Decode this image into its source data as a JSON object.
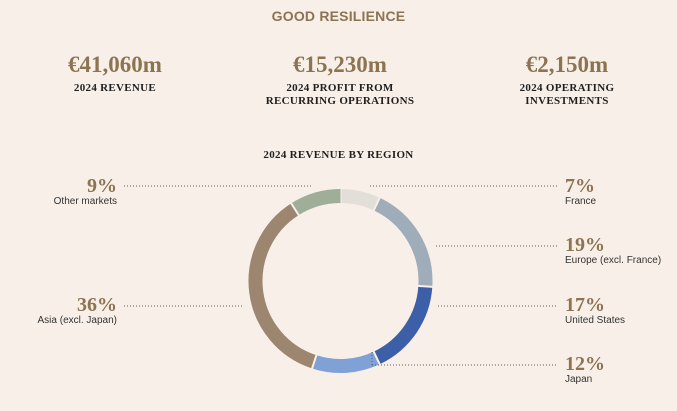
{
  "header": {
    "title": "GOOD RESILIENCE"
  },
  "kpis": [
    {
      "value": "€41,060m",
      "label": "2024 REVENUE"
    },
    {
      "value": "€15,230m",
      "label_line1": "2024 PROFIT FROM",
      "label_line2": "RECURRING OPERATIONS"
    },
    {
      "value": "€2,150m",
      "label_line1": "2024 OPERATING",
      "label_line2": "INVESTMENTS"
    }
  ],
  "chart_data": {
    "type": "pie",
    "title": "2024 REVENUE BY REGION",
    "unit": "%",
    "slices": [
      {
        "label": "France",
        "value": 7,
        "display": "7%",
        "color": "#e2ded8"
      },
      {
        "label": "Europe (excl. France)",
        "value": 19,
        "display": "19%",
        "color": "#9eadb9"
      },
      {
        "label": "United States",
        "value": 17,
        "display": "17%",
        "color": "#3d5fa8"
      },
      {
        "label": "Japan",
        "value": 12,
        "display": "12%",
        "color": "#7fa1d6"
      },
      {
        "label": "Asia (excl. Japan)",
        "value": 36,
        "display": "36%",
        "color": "#9c8670"
      },
      {
        "label": "Other markets",
        "value": 9,
        "display": "9%",
        "color": "#9fae98"
      }
    ]
  }
}
